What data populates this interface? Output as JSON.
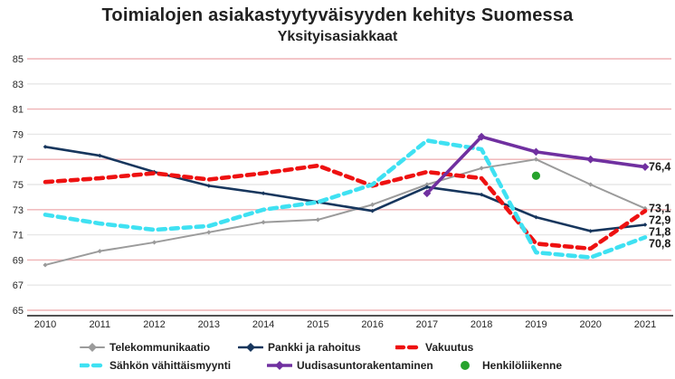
{
  "title": "Toimialojen asiakastyytyväisyyden kehitys Suomessa",
  "subtitle": "Yksityisasiakkaat",
  "chart_data": {
    "type": "line",
    "title": "Toimialojen asiakastyytyväisyyden kehitys Suomessa",
    "subtitle": "Yksityisasiakkaat",
    "xlabel": "",
    "ylabel": "",
    "x": [
      "2010",
      "2011",
      "2012",
      "2013",
      "2014",
      "2015",
      "2016",
      "2017",
      "2018",
      "2019",
      "2020",
      "2021"
    ],
    "yticks": [
      85,
      83,
      81,
      79,
      77,
      75,
      73,
      71,
      69,
      67,
      65
    ],
    "ylim": [
      64,
      86
    ],
    "grid": true,
    "legend_position": "bottom",
    "gridline_colors": {
      "pink": "#efb3b6",
      "gray": "#e7e7e7"
    },
    "axis_color": "#1a1a1a",
    "end_label_color": "#1a1a1a",
    "series": [
      {
        "name": "Telekommunikaatio",
        "color": "#9b9b9b",
        "width": 2,
        "dash": "",
        "marker": "diamond",
        "msize": 2.6,
        "values": [
          68.6,
          69.7,
          70.4,
          71.2,
          72.0,
          72.2,
          73.4,
          75.0,
          76.3,
          77.0,
          75.0,
          73.1
        ],
        "end_label": "73,1"
      },
      {
        "name": "Pankki ja rahoitus",
        "color": "#17365d",
        "width": 2.6,
        "dash": "",
        "marker": "diamond",
        "msize": 2.3,
        "values": [
          78.0,
          77.3,
          76.0,
          74.9,
          74.3,
          73.6,
          72.9,
          74.8,
          74.2,
          72.4,
          71.3,
          71.8
        ],
        "end_label": "71,8"
      },
      {
        "name": "Vakuutus",
        "color": "#ee1111",
        "width": 4.6,
        "dash": "8 6",
        "marker": "none",
        "msize": 0,
        "values": [
          75.2,
          75.5,
          75.9,
          75.4,
          75.9,
          76.5,
          74.9,
          76.0,
          75.5,
          70.3,
          69.9,
          72.9
        ],
        "end_label": "72,9"
      },
      {
        "name": "Sähkön vähittäismyynti",
        "color": "#3fe1f2",
        "width": 4.6,
        "dash": "8 6",
        "marker": "none",
        "msize": 0,
        "values": [
          72.6,
          71.9,
          71.4,
          71.7,
          73.0,
          73.6,
          75.0,
          78.5,
          77.8,
          69.6,
          69.2,
          70.8
        ],
        "end_label": "70,8"
      },
      {
        "name": "Uudisasuntorakentaminen",
        "color": "#7030a0",
        "width": 3.6,
        "dash": "",
        "marker": "diamond",
        "msize": 4.4,
        "values": [
          null,
          null,
          null,
          null,
          null,
          null,
          null,
          74.3,
          78.8,
          77.6,
          77.0,
          76.4
        ],
        "end_label": "76,4"
      },
      {
        "name": "Henkilöliikenne",
        "color": "#27a32d",
        "width": 0,
        "dash": "",
        "marker": "dot",
        "msize": 4.6,
        "values": [
          null,
          null,
          null,
          null,
          null,
          null,
          null,
          null,
          null,
          75.7,
          null,
          null
        ],
        "end_label": ""
      }
    ]
  }
}
